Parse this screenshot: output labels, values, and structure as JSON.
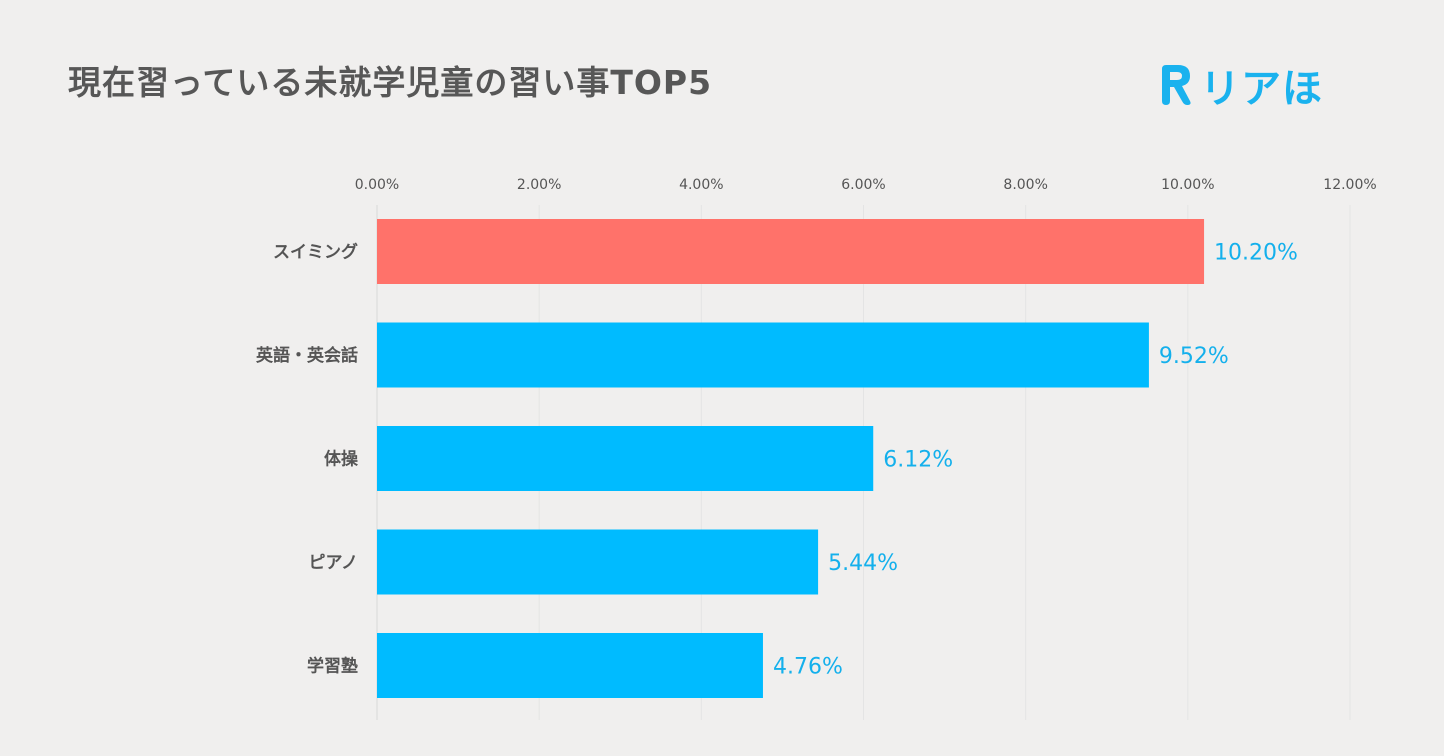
{
  "title": "現在習っている未就学児童の習い事TOP5",
  "logo": {
    "text": "リアほ",
    "icon": "r-logo-icon",
    "color": "#1ab2ee"
  },
  "chart_data": {
    "type": "bar",
    "orientation": "horizontal",
    "title": "現在習っている未就学児童の習い事TOP5",
    "categories": [
      "スイミング",
      "英語・英会話",
      "体操",
      "ピアノ",
      "学習塾"
    ],
    "values": [
      10.2,
      9.52,
      6.12,
      5.44,
      4.76
    ],
    "value_labels": [
      "10.20%",
      "9.52%",
      "6.12%",
      "5.44%",
      "4.76%"
    ],
    "xlim": [
      0,
      12
    ],
    "x_ticks": [
      "0.00%",
      "2.00%",
      "4.00%",
      "6.00%",
      "8.00%",
      "10.00%",
      "12.00%"
    ],
    "x_tick_values": [
      0,
      2,
      4,
      6,
      8,
      10,
      12
    ],
    "axis_position": "top",
    "grid": true,
    "highlight_color": "#ff726a",
    "bar_color": "#00bbff",
    "highlight_index": 0,
    "value_label_color": "#14b0ec"
  }
}
